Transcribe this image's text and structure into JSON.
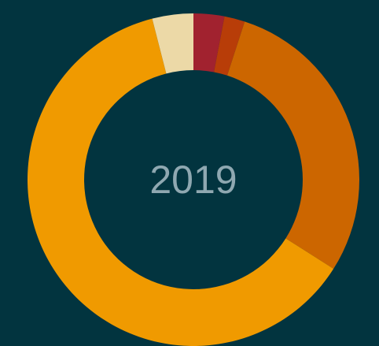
{
  "chart_data": {
    "type": "donut",
    "center_label": "2019",
    "categories": [
      null,
      null,
      null,
      null,
      null
    ],
    "values": [
      3,
      2,
      29,
      62,
      4
    ],
    "colors": [
      "#a1222f",
      "#b83d08",
      "#cc6600",
      "#f09a00",
      "#ecd9a7"
    ]
  }
}
